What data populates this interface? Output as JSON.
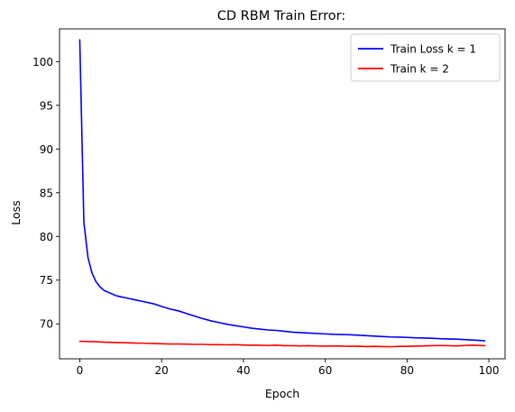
{
  "chart_data": {
    "type": "line",
    "title": "CD RBM Train Error:",
    "xlabel": "Epoch",
    "ylabel": "Loss",
    "xlim": [
      -4.95,
      103.95
    ],
    "ylim": [
      66.0,
      103.75
    ],
    "xticks": [
      0,
      20,
      40,
      60,
      80,
      100
    ],
    "yticks": [
      70,
      75,
      80,
      85,
      90,
      95,
      100
    ],
    "grid": false,
    "legend_position": "top-right",
    "series": [
      {
        "name": "Train Loss k = 1",
        "color": "#0000ff",
        "x": [
          0,
          1,
          2,
          3,
          4,
          5,
          6,
          7,
          8,
          9,
          10,
          11,
          12,
          13,
          14,
          15,
          16,
          17,
          18,
          19,
          20,
          22,
          24,
          26,
          28,
          30,
          32,
          34,
          36,
          38,
          40,
          42,
          44,
          46,
          48,
          50,
          52,
          54,
          56,
          58,
          60,
          62,
          64,
          66,
          68,
          70,
          72,
          74,
          76,
          78,
          80,
          82,
          84,
          86,
          88,
          90,
          92,
          94,
          96,
          98,
          99
        ],
        "y": [
          102.5,
          81.6,
          77.6,
          75.8,
          74.8,
          74.2,
          73.8,
          73.6,
          73.4,
          73.2,
          73.1,
          73.0,
          72.9,
          72.8,
          72.7,
          72.6,
          72.5,
          72.4,
          72.3,
          72.15,
          72.0,
          71.7,
          71.5,
          71.2,
          70.9,
          70.6,
          70.35,
          70.15,
          69.95,
          69.8,
          69.65,
          69.5,
          69.4,
          69.3,
          69.25,
          69.15,
          69.05,
          69.0,
          68.95,
          68.9,
          68.85,
          68.8,
          68.78,
          68.75,
          68.7,
          68.65,
          68.6,
          68.55,
          68.5,
          68.48,
          68.45,
          68.4,
          68.38,
          68.35,
          68.3,
          68.28,
          68.25,
          68.2,
          68.15,
          68.1,
          68.05
        ]
      },
      {
        "name": "Train k = 2",
        "color": "#ff0000",
        "x": [
          0,
          2,
          4,
          6,
          8,
          10,
          12,
          14,
          16,
          18,
          20,
          22,
          24,
          26,
          28,
          30,
          32,
          34,
          36,
          38,
          40,
          42,
          44,
          46,
          48,
          50,
          52,
          54,
          56,
          58,
          60,
          62,
          64,
          66,
          68,
          70,
          72,
          74,
          76,
          78,
          80,
          82,
          84,
          86,
          88,
          90,
          92,
          94,
          96,
          98,
          99
        ],
        "y": [
          68.0,
          67.98,
          67.95,
          67.9,
          67.88,
          67.85,
          67.82,
          67.8,
          67.78,
          67.75,
          67.72,
          67.7,
          67.7,
          67.68,
          67.65,
          67.65,
          67.62,
          67.62,
          67.6,
          67.62,
          67.58,
          67.55,
          67.55,
          67.52,
          67.55,
          67.5,
          67.5,
          67.48,
          67.5,
          67.46,
          67.45,
          67.48,
          67.45,
          67.42,
          67.45,
          67.4,
          67.42,
          67.4,
          67.38,
          67.42,
          67.42,
          67.45,
          67.48,
          67.5,
          67.52,
          67.5,
          67.48,
          67.52,
          67.55,
          67.52,
          67.5
        ]
      }
    ]
  }
}
